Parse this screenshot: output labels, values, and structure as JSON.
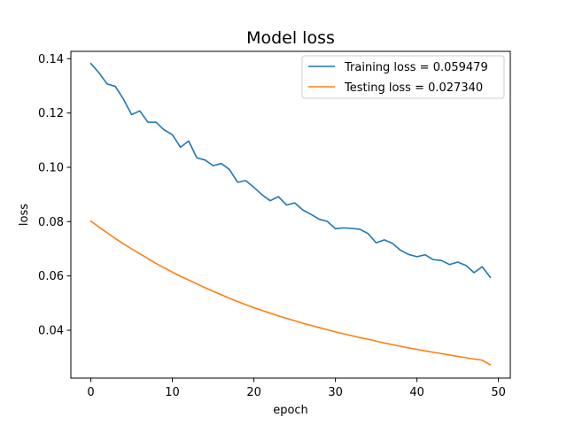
{
  "chart_data": {
    "type": "line",
    "title": "Model loss",
    "xlabel": "epoch",
    "ylabel": "loss",
    "xlim": [
      -2.45,
      51.45
    ],
    "ylim": [
      0.0224,
      0.1427
    ],
    "xticks": [
      0,
      10,
      20,
      30,
      40,
      50
    ],
    "yticks": [
      0.04,
      0.06,
      0.08,
      0.1,
      0.12,
      0.14
    ],
    "ytick_labels": [
      "0.04",
      "0.06",
      "0.08",
      "0.10",
      "0.12",
      "0.14"
    ],
    "grid": false,
    "legend_position": "top-right",
    "x": [
      0,
      1,
      2,
      3,
      4,
      5,
      6,
      7,
      8,
      9,
      10,
      11,
      12,
      13,
      14,
      15,
      16,
      17,
      18,
      19,
      20,
      21,
      22,
      23,
      24,
      25,
      26,
      27,
      28,
      29,
      30,
      31,
      32,
      33,
      34,
      35,
      36,
      37,
      38,
      39,
      40,
      41,
      42,
      43,
      44,
      45,
      46,
      47,
      48,
      49
    ],
    "series": [
      {
        "name": "Training loss = 0.059479",
        "color": "#1f77b4",
        "values": [
          0.1382,
          0.1348,
          0.1307,
          0.1298,
          0.1251,
          0.1194,
          0.1208,
          0.1166,
          0.1166,
          0.1138,
          0.112,
          0.1074,
          0.1097,
          0.1035,
          0.1027,
          0.1006,
          0.1014,
          0.0992,
          0.0945,
          0.0951,
          0.0926,
          0.0899,
          0.0877,
          0.0892,
          0.0861,
          0.0869,
          0.0843,
          0.0827,
          0.0809,
          0.0801,
          0.0774,
          0.0777,
          0.0775,
          0.0772,
          0.0756,
          0.0722,
          0.0733,
          0.072,
          0.0694,
          0.0679,
          0.0671,
          0.0678,
          0.066,
          0.0657,
          0.0642,
          0.0651,
          0.0639,
          0.0612,
          0.0634,
          0.0595
        ]
      },
      {
        "name": "Testing loss = 0.027340",
        "color": "#ff7f0e",
        "values": [
          0.0802,
          0.078,
          0.0759,
          0.0738,
          0.0718,
          0.07,
          0.0682,
          0.0664,
          0.0646,
          0.063,
          0.0614,
          0.0599,
          0.0585,
          0.0571,
          0.0557,
          0.0544,
          0.0531,
          0.0518,
          0.0506,
          0.0494,
          0.0483,
          0.0473,
          0.0463,
          0.0453,
          0.0444,
          0.0435,
          0.0426,
          0.0418,
          0.041,
          0.0402,
          0.0394,
          0.0387,
          0.038,
          0.0373,
          0.0367,
          0.036,
          0.0353,
          0.0347,
          0.0341,
          0.0335,
          0.033,
          0.0324,
          0.0319,
          0.0314,
          0.0309,
          0.0304,
          0.0299,
          0.0294,
          0.029,
          0.0273
        ]
      }
    ]
  }
}
